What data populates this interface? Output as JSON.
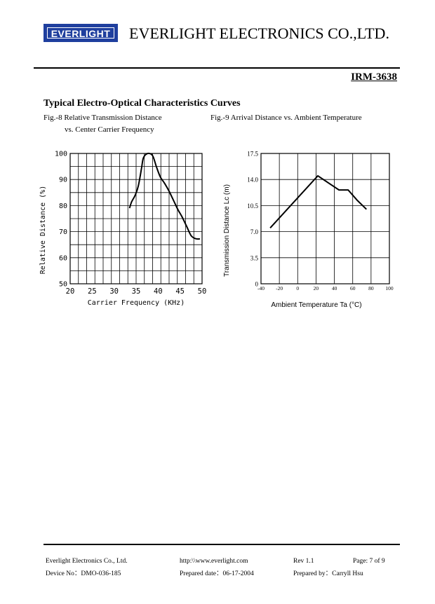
{
  "header": {
    "logo_text": "EVERLIGHT",
    "company": "EVERLIGHT ELECTRONICS CO.,LTD.",
    "model": "IRM-3638"
  },
  "section_title": "Typical Electro-Optical Characteristics Curves",
  "colors": {
    "logo_blue": "#1f3f9e",
    "ink": "#000000"
  },
  "chart_data": [
    {
      "type": "line",
      "caption_line1": "Fig.-8 Relative Transmission Distance",
      "caption_line2": "vs. Center Carrier Frequency",
      "xlabel": "Carrier Frequency (KHz)",
      "ylabel": "Relative Distance (%)",
      "xlim": [
        20,
        50
      ],
      "ylim": [
        50,
        100
      ],
      "x_ticks": [
        "20",
        "25",
        "30",
        "35",
        "40",
        "45",
        "50"
      ],
      "y_ticks": [
        "50",
        "60",
        "70",
        "80",
        "90",
        "100"
      ],
      "grid": true,
      "series": [
        {
          "name": "Relative Distance",
          "x": [
            33.5,
            34,
            34.8,
            35.5,
            36.2,
            36.6,
            37.2,
            38,
            38.8,
            39.6,
            40.5,
            41.5,
            42.5,
            43.5,
            44.5,
            45.5,
            46.5,
            47.5,
            48.5,
            49.5
          ],
          "y": [
            79,
            81.5,
            84,
            87.5,
            94,
            98,
            99.6,
            100,
            99,
            95,
            91,
            88.5,
            85.5,
            82,
            78.5,
            75.5,
            72,
            68.5,
            67.3,
            67.2
          ]
        }
      ]
    },
    {
      "type": "line",
      "caption_line1": "Fig.-9 Arrival Distance vs. Ambient Temperature",
      "xlabel": "Ambient Temperature Ta (°C)",
      "ylabel": "Transmission Distance Lc (m)",
      "xlim": [
        -40,
        100
      ],
      "ylim": [
        0,
        17.5
      ],
      "x_ticks": [
        "-40",
        "-20",
        "0",
        "20",
        "40",
        "60",
        "80",
        "100"
      ],
      "y_ticks": [
        "0",
        "3.5",
        "7.0",
        "10.5",
        "14.0",
        "17.5"
      ],
      "grid": true,
      "series": [
        {
          "name": "Transmission Distance",
          "x": [
            -30,
            22,
            45,
            55,
            65,
            75
          ],
          "y": [
            7.5,
            14.5,
            12.6,
            12.6,
            11.2,
            10.0
          ]
        }
      ]
    }
  ],
  "footer": {
    "company": "Everlight Electronics Co., Ltd.",
    "url": "http:\\\\www.everlight.com",
    "rev": "Rev 1.1",
    "page": "Page: 7 of 9",
    "device_no": "Device No：DMO-036-185",
    "prepared_date": "Prepared date：06-17-2004",
    "prepared_by": "Prepared by：Carryll Hsu"
  }
}
